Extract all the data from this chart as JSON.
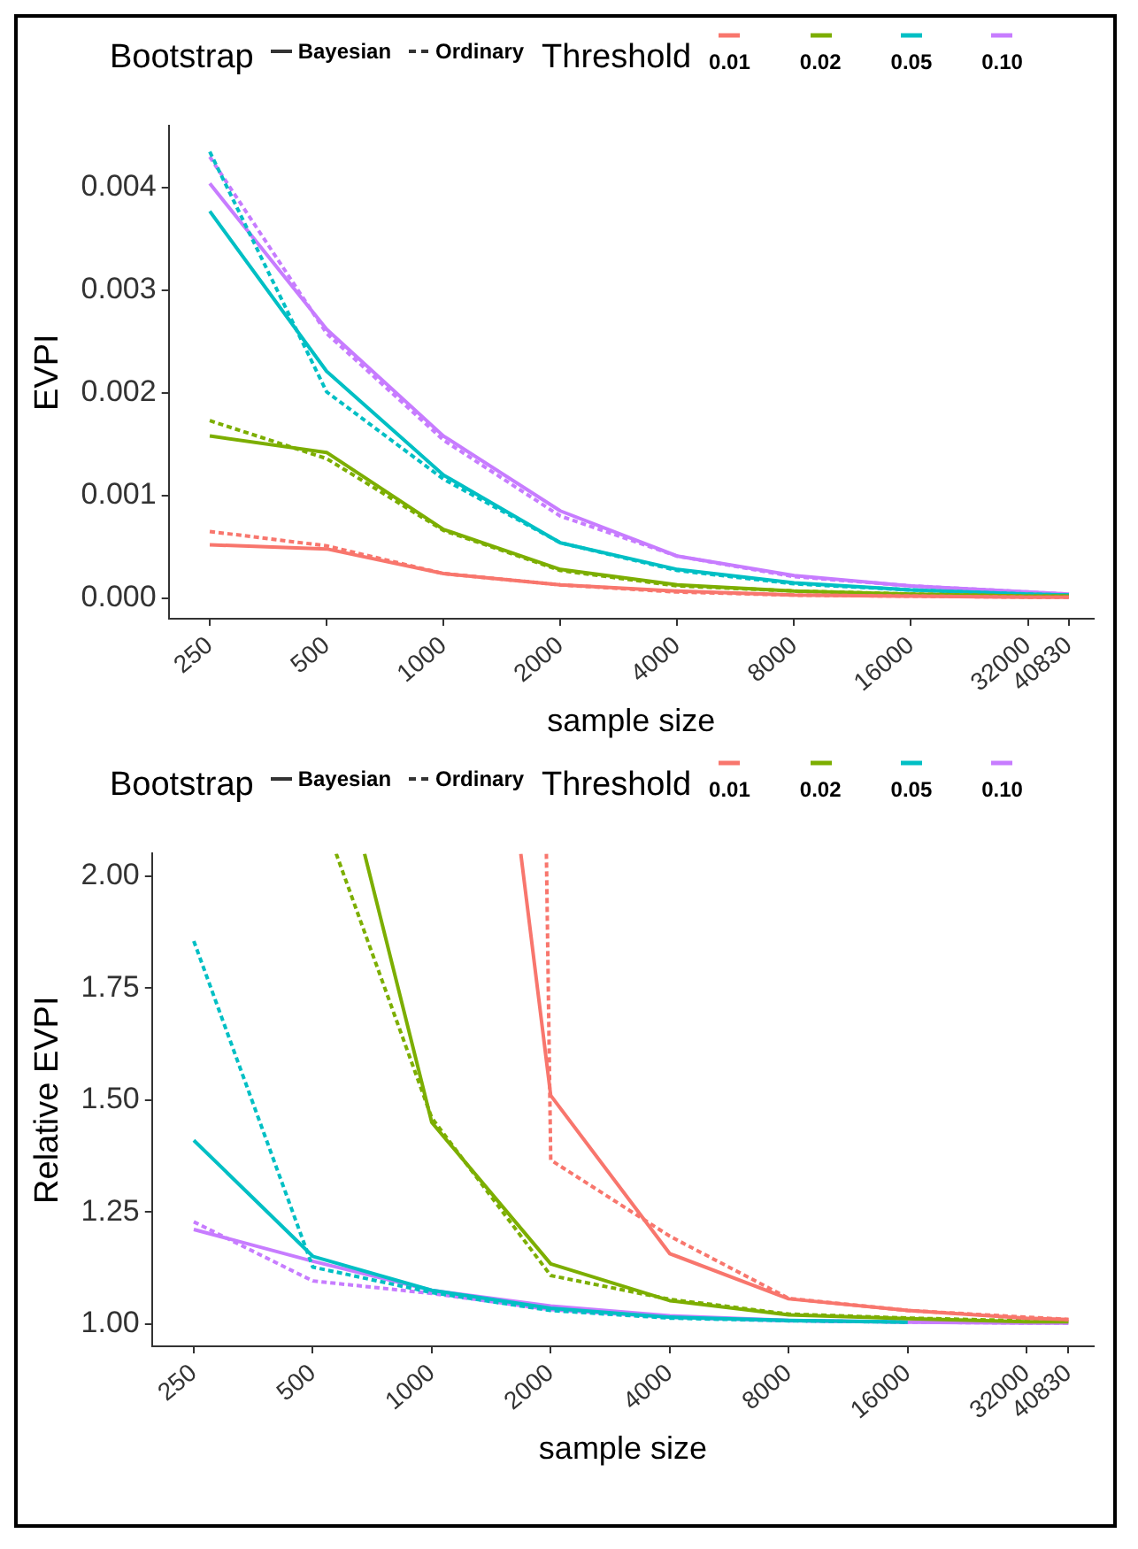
{
  "chart_data": [
    {
      "type": "line",
      "xlabel": "sample size",
      "ylabel": "EVPI",
      "legend": "top",
      "legend_title": "Threshold",
      "annotations": [
        "Bootstrap",
        "Bayesian",
        "Ordinary"
      ],
      "log": "x",
      "grid": false,
      "marker": "none",
      "xlim": [
        196,
        47300
      ],
      "xticks": [
        250,
        500,
        1000,
        2000,
        4000,
        8000,
        16000,
        32000,
        40830
      ],
      "ylim": [
        -0.0002,
        0.0046
      ],
      "yticks": [
        {
          "value": 0,
          "label": "0.000"
        },
        {
          "value": 0.001,
          "label": "0.001"
        },
        {
          "value": 0.002,
          "label": "0.002"
        },
        {
          "value": 0.003,
          "label": "0.003"
        },
        {
          "value": 0.004,
          "label": "0.004"
        }
      ],
      "x": [
        250,
        500,
        1000,
        2000,
        4000,
        8000,
        16000,
        32000,
        40830
      ],
      "series": [
        {
          "name": "0.01",
          "color": "#f8766d",
          "line_style": "solid",
          "values": [
            0.00052,
            0.00048,
            0.00024,
            0.00013,
            7e-05,
            3e-05,
            2e-05,
            1e-05,
            1e-05
          ]
        },
        {
          "color": "#f8766d",
          "line_style": "dashed",
          "values": [
            0.00065,
            0.00051,
            0.00024,
            0.00013,
            6e-05,
            3e-05,
            2e-05,
            1e-05,
            1e-05
          ]
        },
        {
          "name": "0.02",
          "color": "#7cae00",
          "line_style": "solid",
          "values": [
            0.00158,
            0.00142,
            0.00067,
            0.00028,
            0.00013,
            7e-05,
            4e-05,
            2e-05,
            2e-05
          ]
        },
        {
          "color": "#7cae00",
          "line_style": "dashed",
          "values": [
            0.00173,
            0.00136,
            0.00066,
            0.00027,
            0.00012,
            7e-05,
            4e-05,
            2e-05,
            2e-05
          ]
        },
        {
          "name": "0.05",
          "color": "#00bfc4",
          "line_style": "solid",
          "values": [
            0.00377,
            0.00221,
            0.0012,
            0.00054,
            0.00028,
            0.00015,
            8e-05,
            4e-05,
            3e-05
          ]
        },
        {
          "color": "#00bfc4",
          "line_style": "dashed",
          "values": [
            0.00435,
            0.00201,
            0.00116,
            0.00054,
            0.00027,
            0.00014,
            8e-05,
            4e-05,
            3e-05
          ]
        },
        {
          "name": "0.10",
          "color": "#c77cff",
          "line_style": "solid",
          "values": [
            0.00404,
            0.00262,
            0.00158,
            0.00085,
            0.00041,
            0.00022,
            0.00012,
            6e-05,
            4e-05
          ]
        },
        {
          "color": "#c77cff",
          "line_style": "dashed",
          "values": [
            0.0043,
            0.00258,
            0.00154,
            0.0008,
            0.00041,
            0.00021,
            0.00012,
            6e-05,
            4e-05
          ]
        }
      ]
    },
    {
      "type": "line",
      "xlabel": "sample size",
      "ylabel": "Relative EVPI",
      "legend": "top",
      "legend_title": "Threshold",
      "annotations": [
        "Bootstrap",
        "Bayesian",
        "Ordinary"
      ],
      "log": "x",
      "grid": false,
      "marker": "none",
      "xlim": [
        196,
        47300
      ],
      "xticks": [
        250,
        500,
        1000,
        2000,
        4000,
        8000,
        16000,
        32000,
        40830
      ],
      "ylim": [
        0.95,
        2.05
      ],
      "yticks": [
        {
          "value": 1,
          "label": "1.00"
        },
        {
          "value": 1.25,
          "label": "1.25"
        },
        {
          "value": 1.5,
          "label": "1.50"
        },
        {
          "value": 1.75,
          "label": "1.75"
        },
        {
          "value": 2,
          "label": "2.00"
        }
      ],
      "series": [
        {
          "name": "0.01",
          "color": "#f8766d",
          "line_style": "solid",
          "x": [
            1680,
            2000,
            4000,
            8000,
            16000,
            32000,
            40830
          ],
          "values": [
            2.05,
            1.51,
            1.157,
            1.056,
            1.03,
            1.013,
            1.01
          ]
        },
        {
          "color": "#f8766d",
          "line_style": "dashed",
          "x": [
            1950,
            2000,
            4000,
            8000,
            16000,
            32000,
            40830
          ],
          "values": [
            2.05,
            1.366,
            1.196,
            1.057,
            1.03,
            1.015,
            1.01
          ]
        },
        {
          "name": "0.02",
          "color": "#7cae00",
          "line_style": "solid",
          "x": [
            676,
            1000,
            2000,
            4000,
            8000,
            16000,
            32000,
            40830
          ],
          "values": [
            2.05,
            1.45,
            1.134,
            1.052,
            1.02,
            1.012,
            1.005,
            1.005
          ]
        },
        {
          "color": "#7cae00",
          "line_style": "dashed",
          "x": [
            573,
            1000,
            2000,
            4000,
            8000,
            16000,
            32000,
            40830
          ],
          "values": [
            2.05,
            1.46,
            1.108,
            1.055,
            1.022,
            1.013,
            1.007,
            1.007
          ]
        },
        {
          "name": "0.05",
          "color": "#00bfc4",
          "line_style": "solid",
          "x": [
            250,
            500,
            1000,
            2000,
            4000,
            8000,
            16000
          ],
          "values": [
            1.41,
            1.151,
            1.075,
            1.035,
            1.015,
            1.008,
            1.004
          ]
        },
        {
          "color": "#00bfc4",
          "line_style": "dashed",
          "x": [
            250,
            500,
            1000,
            2000,
            4000,
            8000,
            16000
          ],
          "values": [
            1.855,
            1.127,
            1.07,
            1.03,
            1.013,
            1.007,
            1.004
          ]
        },
        {
          "name": "0.10",
          "color": "#c77cff",
          "line_style": "solid",
          "x": [
            250,
            500,
            1000,
            2000,
            4000,
            8000,
            16000,
            32000,
            40830
          ],
          "values": [
            1.211,
            1.14,
            1.075,
            1.04,
            1.018,
            1.008,
            1.004,
            1.002,
            1.002
          ]
        },
        {
          "color": "#c77cff",
          "line_style": "dashed",
          "x": [
            250,
            500,
            1000,
            2000,
            4000,
            8000,
            16000,
            32000,
            40830
          ],
          "values": [
            1.228,
            1.096,
            1.068,
            1.032,
            1.015,
            1.007,
            1.004,
            1.002,
            1.002
          ]
        }
      ]
    }
  ]
}
